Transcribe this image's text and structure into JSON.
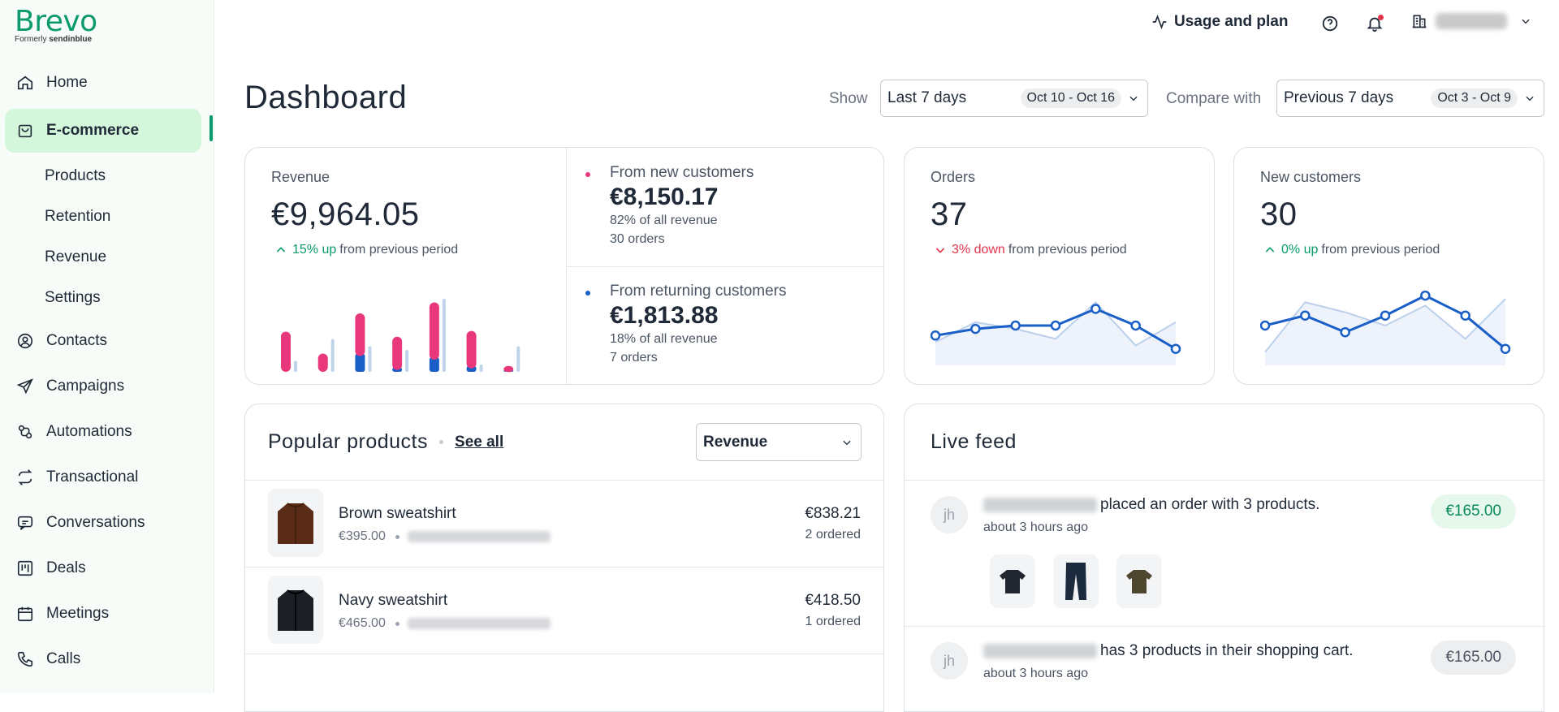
{
  "brand": {
    "name": "Brevo",
    "formerly_prefix": "Formerly",
    "formerly_name": "sendinblue"
  },
  "nav": {
    "home": "Home",
    "ecommerce": "E-commerce",
    "sub": [
      "Products",
      "Retention",
      "Revenue",
      "Settings"
    ],
    "contacts": "Contacts",
    "campaigns": "Campaigns",
    "automations": "Automations",
    "transactional": "Transactional",
    "conversations": "Conversations",
    "deals": "Deals",
    "meetings": "Meetings",
    "calls": "Calls"
  },
  "topbar": {
    "usage": "Usage and plan"
  },
  "header": {
    "title": "Dashboard",
    "show_label": "Show",
    "show_value": "Last 7 days",
    "show_range": "Oct 10 - Oct 16",
    "compare_label": "Compare with",
    "compare_value": "Previous 7 days",
    "compare_range": "Oct 3 - Oct 9"
  },
  "revenue": {
    "label": "Revenue",
    "value": "€9,964.05",
    "delta": "15% up",
    "delta_suffix": "from previous period",
    "new": {
      "title": "From new customers",
      "value": "€8,150.17",
      "share": "82% of all revenue",
      "orders": "30 orders"
    },
    "returning": {
      "title": "From returning customers",
      "value": "€1,813.88",
      "share": "18% of all revenue",
      "orders": "7 orders"
    }
  },
  "orders": {
    "label": "Orders",
    "value": "37",
    "delta": "3% down",
    "delta_suffix": "from previous period"
  },
  "new_customers": {
    "label": "New customers",
    "value": "30",
    "delta": "0% up",
    "delta_suffix": "from previous period"
  },
  "popular": {
    "title": "Popular products",
    "see_all": "See all",
    "sort": "Revenue",
    "items": [
      {
        "name": "Brown sweatshirt",
        "price": "€395.00",
        "amount": "€838.21",
        "count": "2 ordered"
      },
      {
        "name": "Navy sweatshirt",
        "price": "€465.00",
        "amount": "€418.50",
        "count": "1 ordered"
      }
    ]
  },
  "feed": {
    "title": "Live feed",
    "items": [
      {
        "initials": "jh",
        "text": "placed an order with 3 products.",
        "time": "about 3 hours ago",
        "amount": "€165.00"
      },
      {
        "initials": "jh",
        "text": "has 3 products in their shopping cart.",
        "time": "about 3 hours ago",
        "amount": "€165.00"
      }
    ]
  },
  "colors": {
    "accent": "#0b996e",
    "brand_green": "#d4f7db",
    "new_series": "#e8377a",
    "returning_series": "#1a5fc8",
    "down": "#e0344a"
  },
  "chart_data": [
    {
      "type": "bar",
      "series": [
        {
          "name": "From new customers",
          "values": [
            0.55,
            0.25,
            0.55,
            0.42,
            0.75,
            0.48,
            0.05
          ]
        },
        {
          "name": "From returning customers",
          "values": [
            0.0,
            0.0,
            0.25,
            0.06,
            0.2,
            0.08,
            0.03
          ]
        },
        {
          "values": [
            0.15,
            0.45,
            0.35,
            0.3,
            1.0,
            0.1,
            0.35
          ]
        }
      ]
    },
    {
      "type": "line",
      "series": [
        {
          "values": [
            0.35,
            0.45,
            0.5,
            0.5,
            0.75,
            0.5,
            0.15
          ]
        },
        {
          "values": [
            0.25,
            0.55,
            0.45,
            0.3,
            0.85,
            0.2,
            0.55
          ]
        }
      ]
    },
    {
      "type": "line",
      "series": [
        {
          "values": [
            0.5,
            0.65,
            0.4,
            0.65,
            0.95,
            0.65,
            0.15
          ]
        },
        {
          "values": [
            0.1,
            0.85,
            0.7,
            0.5,
            0.8,
            0.3,
            0.9
          ]
        }
      ]
    }
  ]
}
